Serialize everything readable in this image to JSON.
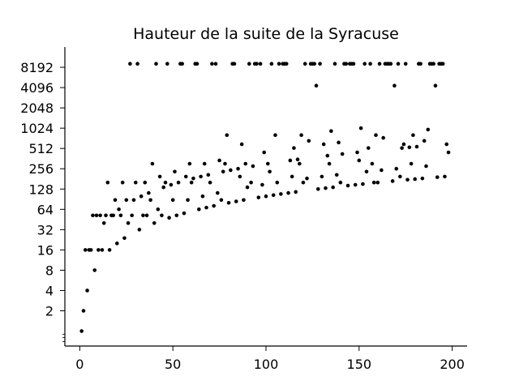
{
  "chart_data": {
    "type": "scatter",
    "title": "Hauteur de la suite de la Syracuse",
    "xlabel": "",
    "ylabel": "",
    "xlim": [
      -8,
      208
    ],
    "ylim": [
      0.6,
      16384
    ],
    "yscale": "log2",
    "grid": false,
    "x_ticks": [
      0,
      50,
      100,
      150,
      200
    ],
    "x_tick_labels": [
      "0",
      "50",
      "100",
      "150",
      "200"
    ],
    "y_ticks": [
      2,
      4,
      8,
      16,
      32,
      64,
      128,
      256,
      512,
      1024,
      2048,
      4096,
      8192
    ],
    "y_tick_labels": [
      "2",
      "4",
      "8",
      "16",
      "32",
      "64",
      "128",
      "256",
      "512",
      "1024",
      "2048",
      "4096",
      "8192"
    ],
    "y_minor_ticks": [
      0.7,
      0.8,
      0.9
    ],
    "marker_color": "#000000",
    "series": [
      {
        "points": [
          [
            1,
            1
          ],
          [
            2,
            2
          ],
          [
            3,
            16
          ],
          [
            4,
            4
          ],
          [
            5,
            16
          ],
          [
            6,
            16
          ],
          [
            7,
            52
          ],
          [
            8,
            8
          ],
          [
            9,
            52
          ],
          [
            10,
            16
          ],
          [
            11,
            52
          ],
          [
            12,
            16
          ],
          [
            13,
            40
          ],
          [
            14,
            52
          ],
          [
            15,
            160
          ],
          [
            16,
            16
          ],
          [
            17,
            52
          ],
          [
            18,
            52
          ],
          [
            19,
            88
          ],
          [
            20,
            20
          ],
          [
            21,
            64
          ],
          [
            22,
            52
          ],
          [
            23,
            160
          ],
          [
            24,
            24
          ],
          [
            25,
            88
          ],
          [
            26,
            40
          ],
          [
            27,
            9232
          ],
          [
            28,
            52
          ],
          [
            29,
            88
          ],
          [
            30,
            160
          ],
          [
            31,
            9232
          ],
          [
            32,
            32
          ],
          [
            33,
            100
          ],
          [
            34,
            52
          ],
          [
            35,
            160
          ],
          [
            36,
            52
          ],
          [
            37,
            112
          ],
          [
            38,
            88
          ],
          [
            39,
            304
          ],
          [
            40,
            40
          ],
          [
            41,
            9232
          ],
          [
            42,
            64
          ],
          [
            43,
            196
          ],
          [
            44,
            52
          ],
          [
            45,
            136
          ],
          [
            46,
            160
          ],
          [
            47,
            9232
          ],
          [
            48,
            48
          ],
          [
            49,
            148
          ],
          [
            50,
            88
          ],
          [
            51,
            232
          ],
          [
            52,
            52
          ],
          [
            53,
            160
          ],
          [
            54,
            9232
          ],
          [
            55,
            9232
          ],
          [
            56,
            56
          ],
          [
            57,
            196
          ],
          [
            58,
            88
          ],
          [
            59,
            304
          ],
          [
            60,
            160
          ],
          [
            61,
            184
          ],
          [
            62,
            9232
          ],
          [
            63,
            9232
          ],
          [
            64,
            64
          ],
          [
            65,
            196
          ],
          [
            66,
            100
          ],
          [
            67,
            304
          ],
          [
            68,
            68
          ],
          [
            69,
            208
          ],
          [
            70,
            160
          ],
          [
            71,
            9232
          ],
          [
            72,
            72
          ],
          [
            73,
            9232
          ],
          [
            74,
            112
          ],
          [
            75,
            340
          ],
          [
            76,
            88
          ],
          [
            77,
            232
          ],
          [
            78,
            304
          ],
          [
            79,
            808
          ],
          [
            80,
            80
          ],
          [
            81,
            244
          ],
          [
            82,
            9232
          ],
          [
            83,
            9232
          ],
          [
            84,
            84
          ],
          [
            85,
            256
          ],
          [
            86,
            196
          ],
          [
            87,
            592
          ],
          [
            88,
            88
          ],
          [
            89,
            304
          ],
          [
            90,
            136
          ],
          [
            91,
            9232
          ],
          [
            92,
            160
          ],
          [
            93,
            280
          ],
          [
            94,
            9232
          ],
          [
            95,
            9232
          ],
          [
            96,
            96
          ],
          [
            97,
            9232
          ],
          [
            98,
            148
          ],
          [
            99,
            448
          ],
          [
            100,
            100
          ],
          [
            101,
            304
          ],
          [
            102,
            232
          ],
          [
            103,
            9232
          ],
          [
            104,
            104
          ],
          [
            105,
            808
          ],
          [
            106,
            160
          ],
          [
            107,
            9232
          ],
          [
            108,
            108
          ],
          [
            109,
            9232
          ],
          [
            110,
            9232
          ],
          [
            111,
            9232
          ],
          [
            112,
            112
          ],
          [
            113,
            340
          ],
          [
            114,
            196
          ],
          [
            115,
            520
          ],
          [
            116,
            116
          ],
          [
            117,
            352
          ],
          [
            118,
            304
          ],
          [
            119,
            808
          ],
          [
            120,
            160
          ],
          [
            121,
            9232
          ],
          [
            122,
            184
          ],
          [
            123,
            664
          ],
          [
            124,
            9232
          ],
          [
            125,
            9232
          ],
          [
            126,
            9232
          ],
          [
            127,
            4372
          ],
          [
            128,
            128
          ],
          [
            129,
            9232
          ],
          [
            130,
            196
          ],
          [
            131,
            592
          ],
          [
            132,
            132
          ],
          [
            133,
            400
          ],
          [
            134,
            304
          ],
          [
            135,
            928
          ],
          [
            136,
            136
          ],
          [
            137,
            9232
          ],
          [
            138,
            208
          ],
          [
            139,
            628
          ],
          [
            140,
            160
          ],
          [
            141,
            424
          ],
          [
            142,
            9232
          ],
          [
            143,
            9232
          ],
          [
            144,
            144
          ],
          [
            145,
            9232
          ],
          [
            146,
            9232
          ],
          [
            147,
            9232
          ],
          [
            148,
            148
          ],
          [
            149,
            448
          ],
          [
            150,
            340
          ],
          [
            151,
            1024
          ],
          [
            152,
            152
          ],
          [
            153,
            9232
          ],
          [
            154,
            232
          ],
          [
            155,
            520
          ],
          [
            156,
            9232
          ],
          [
            157,
            304
          ],
          [
            158,
            160
          ],
          [
            159,
            808
          ],
          [
            160,
            160
          ],
          [
            161,
            9232
          ],
          [
            162,
            244
          ],
          [
            163,
            736
          ],
          [
            164,
            9232
          ],
          [
            165,
            9232
          ],
          [
            166,
            9232
          ],
          [
            167,
            9232
          ],
          [
            168,
            168
          ],
          [
            169,
            4372
          ],
          [
            170,
            256
          ],
          [
            171,
            9232
          ],
          [
            172,
            196
          ],
          [
            173,
            520
          ],
          [
            174,
            592
          ],
          [
            175,
            9232
          ],
          [
            176,
            176
          ],
          [
            177,
            532
          ],
          [
            178,
            304
          ],
          [
            179,
            808
          ],
          [
            180,
            180
          ],
          [
            181,
            544
          ],
          [
            182,
            9232
          ],
          [
            183,
            9232
          ],
          [
            184,
            184
          ],
          [
            185,
            664
          ],
          [
            186,
            280
          ],
          [
            187,
            976
          ],
          [
            188,
            9232
          ],
          [
            189,
            9232
          ],
          [
            190,
            9232
          ],
          [
            191,
            4372
          ],
          [
            192,
            192
          ],
          [
            193,
            9232
          ],
          [
            194,
            9232
          ],
          [
            195,
            9232
          ],
          [
            196,
            196
          ],
          [
            197,
            592
          ],
          [
            198,
            448
          ]
        ]
      }
    ]
  }
}
